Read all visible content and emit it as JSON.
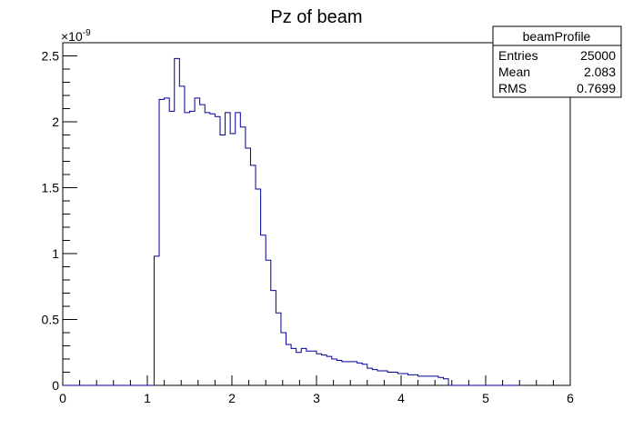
{
  "chart_data": {
    "type": "histogram",
    "title": "Pz of beam",
    "xlabel": "",
    "ylabel": "",
    "xlim": [
      0,
      6
    ],
    "ylim": [
      0,
      2.6
    ],
    "y_exponent_label": "×10",
    "y_exponent": "-9",
    "x_major_ticks": [
      "0",
      "1",
      "2",
      "3",
      "4",
      "5",
      "6"
    ],
    "y_major_ticks": [
      "0",
      "0.5",
      "1",
      "1.5",
      "2",
      "2.5"
    ],
    "grid": false,
    "legend": "none",
    "line_color": "#000099",
    "bin_edges_start": 0,
    "bin_width": 0.06,
    "values": [
      0,
      0,
      0,
      0,
      0,
      0,
      0,
      0,
      0,
      0,
      0,
      0,
      0,
      0,
      0,
      0,
      0,
      0,
      0.98,
      2.17,
      2.18,
      2.08,
      2.48,
      2.27,
      2.07,
      2.08,
      2.18,
      2.13,
      2.07,
      2.06,
      2.04,
      1.9,
      2.07,
      1.91,
      2.07,
      1.96,
      1.8,
      1.67,
      1.49,
      1.14,
      0.95,
      0.72,
      0.55,
      0.4,
      0.31,
      0.28,
      0.25,
      0.28,
      0.26,
      0.26,
      0.24,
      0.23,
      0.22,
      0.2,
      0.19,
      0.18,
      0.18,
      0.18,
      0.17,
      0.16,
      0.13,
      0.12,
      0.11,
      0.11,
      0.1,
      0.1,
      0.09,
      0.09,
      0.08,
      0.08,
      0.07,
      0.07,
      0.07,
      0.07,
      0.06,
      0.05,
      0,
      0,
      0,
      0,
      0,
      0,
      0,
      0,
      0,
      0,
      0,
      0,
      0,
      0
    ]
  },
  "stats_box": {
    "name": "beamProfile",
    "rows": [
      {
        "label": "Entries",
        "value": "25000"
      },
      {
        "label": "Mean",
        "value": "2.083"
      },
      {
        "label": "RMS",
        "value": "0.7699"
      }
    ]
  }
}
